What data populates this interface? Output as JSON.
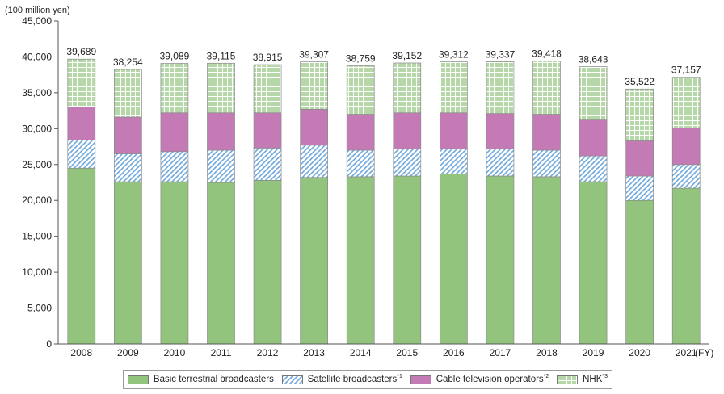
{
  "chart_data": {
    "type": "bar",
    "stacked": true,
    "unit_label": "(100 million yen)",
    "x_unit": "(FY)",
    "categories": [
      "2008",
      "2009",
      "2010",
      "2011",
      "2012",
      "2013",
      "2014",
      "2015",
      "2016",
      "2017",
      "2018",
      "2019",
      "2020",
      "2021"
    ],
    "ylim": [
      0,
      45000
    ],
    "yticks": [
      0,
      5000,
      10000,
      15000,
      20000,
      25000,
      30000,
      35000,
      40000,
      45000
    ],
    "ytick_labels": [
      "0",
      "5,000",
      "10,000",
      "15,000",
      "20,000",
      "25,000",
      "30,000",
      "35,000",
      "40,000",
      "45,000"
    ],
    "grid": false,
    "legend_position": "bottom",
    "series": [
      {
        "name": "Basic terrestrial broadcasters",
        "note": "",
        "color": "#93c47d",
        "pattern": "solid",
        "values": [
          24500,
          22600,
          22600,
          22500,
          22800,
          23200,
          23300,
          23400,
          23700,
          23400,
          23300,
          22600,
          20000,
          21700
        ]
      },
      {
        "name": "Satellite broadcasters",
        "note": "*1",
        "color": "#6fa8dc",
        "pattern": "diagonal",
        "values": [
          3900,
          3900,
          4200,
          4500,
          4500,
          4500,
          3700,
          3800,
          3500,
          3800,
          3700,
          3600,
          3400,
          3300
        ]
      },
      {
        "name": "Cable television operators",
        "note": "*2",
        "color": "#c47ab5",
        "pattern": "solid",
        "values": [
          4600,
          5100,
          5400,
          5200,
          4900,
          5000,
          5000,
          5000,
          5000,
          4900,
          5000,
          5000,
          4900,
          5100
        ]
      },
      {
        "name": "NHK",
        "note": "*3",
        "color": "#b6d7a8",
        "pattern": "grid",
        "values": [
          6689,
          6654,
          6889,
          6915,
          6715,
          6607,
          6759,
          6952,
          7112,
          7237,
          7418,
          7443,
          7222,
          7057
        ]
      }
    ],
    "totals": [
      "39,689",
      "38,254",
      "39,089",
      "39,115",
      "38,915",
      "39,307",
      "38,759",
      "39,152",
      "39,312",
      "39,337",
      "39,418",
      "38,643",
      "35,522",
      "37,157"
    ]
  }
}
